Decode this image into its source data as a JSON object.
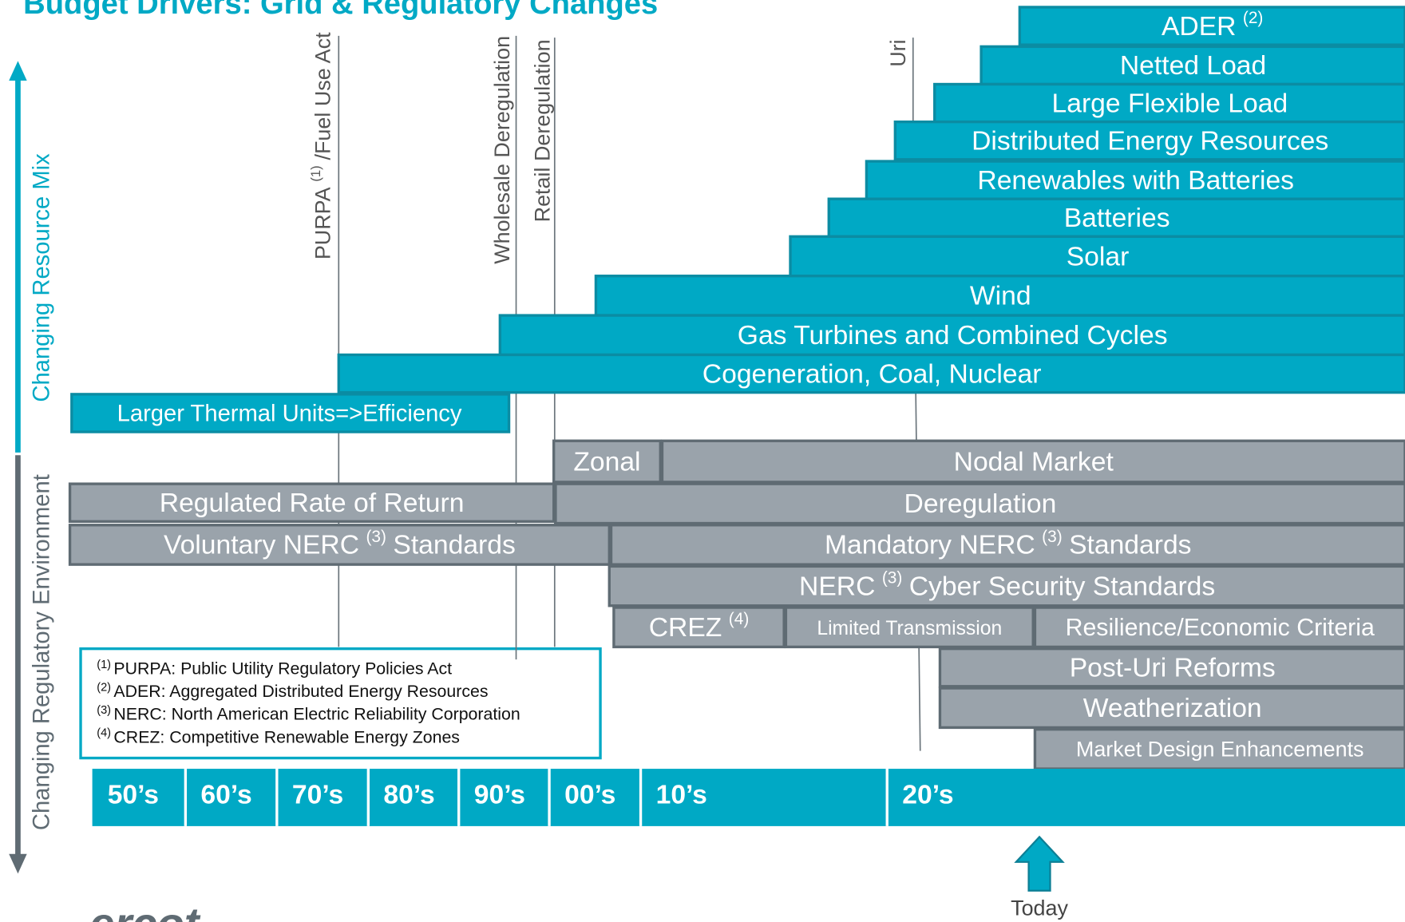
{
  "title": "Budget Drivers: Grid & Regulatory Changes",
  "axes": {
    "resource": "Changing Resource Mix",
    "regulatory": "Changing Regulatory Environment"
  },
  "events": [
    {
      "label": "PURPA",
      "note": "(1)",
      "after": "/Fuel Use Act"
    },
    {
      "label": "Wholesale Deregulation"
    },
    {
      "label": "Retail Deregulation"
    },
    {
      "label": "Uri"
    }
  ],
  "resources": [
    {
      "label": "ADER",
      "note": "(2)"
    },
    {
      "label": "Netted Load"
    },
    {
      "label": "Large Flexible Load"
    },
    {
      "label": "Distributed Energy Resources"
    },
    {
      "label": "Renewables with Batteries"
    },
    {
      "label": "Batteries"
    },
    {
      "label": "Solar"
    },
    {
      "label": "Wind"
    },
    {
      "label": "Gas Turbines and Combined Cycles"
    },
    {
      "label": "Cogeneration, Coal, Nuclear"
    },
    {
      "label": "Larger Thermal Units=>Efficiency"
    }
  ],
  "regulatory": [
    {
      "label": "Zonal"
    },
    {
      "label": "Nodal Market"
    },
    {
      "label": "Regulated Rate of Return"
    },
    {
      "label": "Deregulation"
    },
    {
      "label": "Voluntary NERC",
      "note": "(3)",
      "after": "Standards"
    },
    {
      "label": "Mandatory NERC",
      "note": "(3)",
      "after": "Standards"
    },
    {
      "label": "NERC",
      "note": "(3)",
      "after": "Cyber Security Standards"
    },
    {
      "label": "CREZ",
      "note": "(4)"
    },
    {
      "label": "Limited Transmission"
    },
    {
      "label": "Resilience/Economic Criteria"
    },
    {
      "label": "Post-Uri Reforms"
    },
    {
      "label": "Weatherization"
    },
    {
      "label": "Market Design Enhancements"
    }
  ],
  "footnotes": [
    {
      "note": "(1)",
      "label": "PURPA: Public Utility Regulatory Policies Act"
    },
    {
      "note": "(2)",
      "label": "ADER: Aggregated Distributed Energy Resources"
    },
    {
      "note": "(3)",
      "label": "NERC: North American Electric Reliability Corporation"
    },
    {
      "note": "(4)",
      "label": "CREZ: Competitive Renewable Energy Zones"
    }
  ],
  "decades": [
    "50’s",
    "60’s",
    "70’s",
    "80’s",
    "90’s",
    "00’s",
    "10’s",
    "20’s"
  ],
  "today": "Today",
  "logo": "ercot"
}
